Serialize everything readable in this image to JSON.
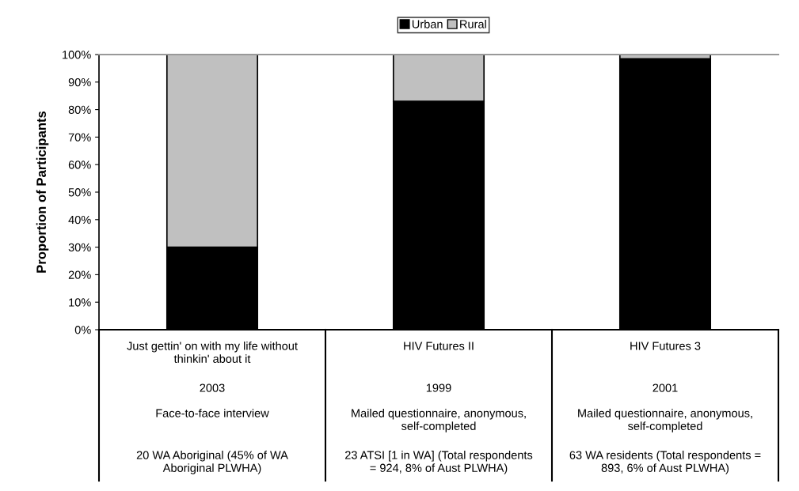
{
  "chart_data": {
    "type": "bar",
    "stacked": true,
    "ylabel": "Proportion of Participants",
    "categories": [
      "Just gettin' on with my life without\nthinkin' about it\n\n2003\n\nFace-to-face interview\n\n20 WA Aboriginal (45% of WA\nAboriginal PLWHA)",
      "HIV Futures II\n\n1999\n\nMailed questionnaire, anonymous,\nself-completed\n\n23 ATSI [1 in WA] (Total respondents\n= 924, 8% of Aust PLWHA)",
      "HIV Futures 3\n\n2001\n\nMailed questionnaire, anonymous,\nself-completed\n\n63 WA residents (Total respondents =\n893, 6% of Aust PLWHA)"
    ],
    "series": [
      {
        "name": "Urban",
        "color": "#000000",
        "values": [
          30,
          83,
          98.5
        ]
      },
      {
        "name": "Rural",
        "color": "#c0c0c0",
        "values": [
          70,
          17,
          1.5
        ]
      }
    ],
    "ylim": [
      0,
      100
    ],
    "yticks": [
      {
        "value": 0,
        "label": "0%"
      },
      {
        "value": 10,
        "label": "10%"
      },
      {
        "value": 20,
        "label": "20%"
      },
      {
        "value": 30,
        "label": "30%"
      },
      {
        "value": 40,
        "label": "40%"
      },
      {
        "value": 50,
        "label": "50%"
      },
      {
        "value": 60,
        "label": "60%"
      },
      {
        "value": 70,
        "label": "70%"
      },
      {
        "value": 80,
        "label": "80%"
      },
      {
        "value": 90,
        "label": "90%"
      },
      {
        "value": 100,
        "label": "100%"
      }
    ],
    "grid": false,
    "legend": "top"
  }
}
